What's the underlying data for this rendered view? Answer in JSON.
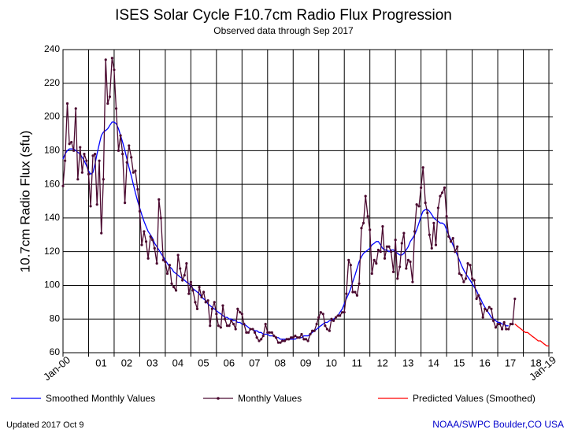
{
  "chart_data": {
    "type": "line",
    "title": "ISES Solar Cycle F10.7cm Radio Flux Progression",
    "subtitle": "Observed data through Sep 2017",
    "y_label": "10.7cm Radio Flux (sfu)",
    "footer_left": "Updated 2017 Oct  9",
    "footer_right": "NOAA/SWPC Boulder,CO USA",
    "grid": true,
    "ylim": [
      60,
      240
    ],
    "yticks": [
      60,
      80,
      100,
      120,
      140,
      160,
      180,
      200,
      220,
      240
    ],
    "xlim": [
      2000,
      2019
    ],
    "xticks": [
      {
        "value": 2000,
        "label": "Jan-00"
      },
      {
        "value": 2001,
        "label": "01"
      },
      {
        "value": 2002,
        "label": "02"
      },
      {
        "value": 2003,
        "label": "03"
      },
      {
        "value": 2004,
        "label": "04"
      },
      {
        "value": 2005,
        "label": "05"
      },
      {
        "value": 2006,
        "label": "06"
      },
      {
        "value": 2007,
        "label": "07"
      },
      {
        "value": 2008,
        "label": "08"
      },
      {
        "value": 2009,
        "label": "09"
      },
      {
        "value": 2010,
        "label": "10"
      },
      {
        "value": 2011,
        "label": "11"
      },
      {
        "value": 2012,
        "label": "12"
      },
      {
        "value": 2013,
        "label": "13"
      },
      {
        "value": 2014,
        "label": "14"
      },
      {
        "value": 2015,
        "label": "15"
      },
      {
        "value": 2016,
        "label": "16"
      },
      {
        "value": 2017,
        "label": "17"
      },
      {
        "value": 2018,
        "label": "18"
      },
      {
        "value": 2019,
        "label": "Jan-19"
      }
    ],
    "x": [
      2000,
      2000.08,
      2000.17,
      2000.25,
      2000.33,
      2000.42,
      2000.5,
      2000.58,
      2000.67,
      2000.75,
      2000.83,
      2000.92,
      2001,
      2001.08,
      2001.17,
      2001.25,
      2001.33,
      2001.42,
      2001.5,
      2001.58,
      2001.67,
      2001.75,
      2001.83,
      2001.92,
      2002,
      2002.08,
      2002.17,
      2002.25,
      2002.33,
      2002.42,
      2002.5,
      2002.58,
      2002.67,
      2002.75,
      2002.83,
      2002.92,
      2003,
      2003.08,
      2003.17,
      2003.25,
      2003.33,
      2003.42,
      2003.5,
      2003.58,
      2003.67,
      2003.75,
      2003.83,
      2003.92,
      2004,
      2004.08,
      2004.17,
      2004.25,
      2004.33,
      2004.42,
      2004.5,
      2004.58,
      2004.67,
      2004.75,
      2004.83,
      2004.92,
      2005,
      2005.08,
      2005.17,
      2005.25,
      2005.33,
      2005.42,
      2005.5,
      2005.58,
      2005.67,
      2005.75,
      2005.83,
      2005.92,
      2006,
      2006.08,
      2006.17,
      2006.25,
      2006.33,
      2006.42,
      2006.5,
      2006.58,
      2006.67,
      2006.75,
      2006.83,
      2006.92,
      2007,
      2007.08,
      2007.17,
      2007.25,
      2007.33,
      2007.42,
      2007.5,
      2007.58,
      2007.67,
      2007.75,
      2007.83,
      2007.92,
      2008,
      2008.08,
      2008.17,
      2008.25,
      2008.33,
      2008.42,
      2008.5,
      2008.58,
      2008.67,
      2008.75,
      2008.83,
      2008.92,
      2009,
      2009.08,
      2009.17,
      2009.25,
      2009.33,
      2009.42,
      2009.5,
      2009.58,
      2009.67,
      2009.75,
      2009.83,
      2009.92,
      2010,
      2010.08,
      2010.17,
      2010.25,
      2010.33,
      2010.42,
      2010.5,
      2010.58,
      2010.67,
      2010.75,
      2010.83,
      2010.92,
      2011,
      2011.08,
      2011.17,
      2011.25,
      2011.33,
      2011.42,
      2011.5,
      2011.58,
      2011.67,
      2011.75,
      2011.83,
      2011.92,
      2012,
      2012.08,
      2012.17,
      2012.25,
      2012.33,
      2012.42,
      2012.5,
      2012.58,
      2012.67,
      2012.75,
      2012.83,
      2012.92,
      2013,
      2013.08,
      2013.17,
      2013.25,
      2013.33,
      2013.42,
      2013.5,
      2013.58,
      2013.67,
      2013.75,
      2013.83,
      2013.92,
      2014,
      2014.08,
      2014.17,
      2014.25,
      2014.33,
      2014.42,
      2014.5,
      2014.58,
      2014.67,
      2014.75,
      2014.83,
      2014.92,
      2015,
      2015.08,
      2015.17,
      2015.25,
      2015.33,
      2015.42,
      2015.5,
      2015.58,
      2015.67,
      2015.75,
      2015.83,
      2015.92,
      2016,
      2016.08,
      2016.17,
      2016.25,
      2016.33,
      2016.42,
      2016.5,
      2016.58,
      2016.67,
      2016.75,
      2016.83,
      2016.92,
      2017,
      2017.08,
      2017.17,
      2017.25,
      2017.33,
      2017.42,
      2017.5,
      2017.58,
      2017.67
    ],
    "series": [
      {
        "name": "Smoothed Monthly Values",
        "color": "#0000ff",
        "markers": false,
        "values": [
          175,
          178,
          180,
          181,
          181,
          181,
          180,
          179,
          178,
          176,
          174,
          171,
          168,
          166,
          167,
          172,
          178,
          184,
          189,
          191,
          192,
          193,
          195,
          197,
          197,
          196,
          193,
          189,
          185,
          180,
          175,
          170,
          165,
          160,
          155,
          150,
          146,
          142,
          138,
          135,
          132,
          130,
          128,
          125,
          123,
          121,
          119,
          117,
          115,
          113,
          111,
          110,
          108,
          107,
          106,
          105,
          104,
          103,
          102,
          101,
          100,
          98,
          97,
          96,
          95,
          93,
          92,
          91,
          89,
          88,
          87,
          86,
          85,
          84,
          83,
          82,
          81,
          81,
          80,
          80,
          79,
          79,
          78,
          78,
          77,
          77,
          76,
          75,
          74,
          74,
          73,
          73,
          72,
          72,
          71,
          71,
          71,
          70,
          70,
          70,
          69,
          69,
          68,
          68,
          68,
          68,
          68,
          68,
          68,
          68,
          69,
          69,
          69,
          70,
          70,
          70,
          71,
          72,
          73,
          74,
          75,
          76,
          77,
          78,
          78,
          79,
          79,
          80,
          81,
          82,
          84,
          86,
          89,
          92,
          95,
          98,
          102,
          106,
          110,
          114,
          117,
          119,
          120,
          121,
          122,
          124,
          125,
          126,
          126,
          124,
          122,
          121,
          121,
          120,
          121,
          121,
          120,
          119,
          118,
          118,
          119,
          121,
          123,
          126,
          128,
          130,
          133,
          137,
          141,
          144,
          145,
          145,
          144,
          142,
          140,
          139,
          138,
          137,
          137,
          136,
          133,
          130,
          127,
          124,
          121,
          118,
          115,
          112,
          109,
          107,
          105,
          103,
          101,
          99,
          97,
          94,
          92,
          89,
          87,
          85,
          83,
          81,
          80,
          79,
          78,
          78,
          77,
          77,
          76,
          76,
          null,
          null,
          null
        ]
      },
      {
        "name": "Monthly Values",
        "color": "#4b0a30",
        "markers": true,
        "values": [
          159,
          174,
          208,
          184,
          185,
          180,
          205,
          163,
          182,
          167,
          178,
          174,
          166,
          147,
          177,
          178,
          148,
          174,
          131,
          163,
          234,
          208,
          212,
          235,
          228,
          205,
          180,
          189,
          178,
          149,
          173,
          183,
          176,
          167,
          168,
          157,
          144,
          124,
          132,
          126,
          116,
          129,
          127,
          122,
          113,
          151,
          140,
          115,
          114,
          107,
          112,
          101,
          99,
          97,
          118,
          110,
          103,
          106,
          113,
          95,
          102,
          97,
          90,
          86,
          99,
          93,
          96,
          90,
          91,
          76,
          86,
          90,
          83,
          76,
          75,
          88,
          80,
          76,
          76,
          79,
          77,
          74,
          86,
          84,
          83,
          77,
          72,
          72,
          74,
          74,
          72,
          69,
          67,
          68,
          70,
          77,
          72,
          72,
          72,
          70,
          69,
          66,
          66,
          67,
          67,
          68,
          68,
          69,
          69,
          70,
          69,
          69,
          71,
          68,
          68,
          67,
          71,
          73,
          73,
          77,
          81,
          84,
          83,
          76,
          74,
          73,
          80,
          79,
          81,
          82,
          82,
          84,
          84,
          95,
          115,
          112,
          96,
          96,
          94,
          101,
          134,
          137,
          153,
          141,
          133,
          107,
          115,
          113,
          121,
          120,
          135,
          116,
          123,
          123,
          120,
          108,
          127,
          104,
          111,
          125,
          131,
          110,
          115,
          114,
          102,
          132,
          148,
          147,
          158,
          170,
          149,
          143,
          130,
          122,
          137,
          124,
          146,
          153,
          155,
          158,
          141,
          129,
          126,
          128,
          120,
          123,
          107,
          106,
          102,
          104,
          113,
          112,
          104,
          103,
          92,
          94,
          89,
          81,
          86,
          85,
          87,
          86,
          79,
          75,
          77,
          77,
          74,
          78,
          74,
          74,
          77,
          77,
          92
        ]
      },
      {
        "name": "Predicted Values (Smoothed)",
        "color": "#ff0000",
        "markers": false,
        "x": [
          2017.67,
          2017.75,
          2017.83,
          2017.92,
          2018,
          2018.08,
          2018.17,
          2018.25,
          2018.33,
          2018.42,
          2018.5,
          2018.58,
          2018.67,
          2018.75,
          2018.83,
          2018.92,
          2019
        ],
        "values": [
          77,
          76,
          75,
          74,
          73,
          72,
          72,
          71,
          70,
          69,
          68,
          67,
          67,
          66,
          65,
          64,
          64
        ]
      }
    ]
  }
}
